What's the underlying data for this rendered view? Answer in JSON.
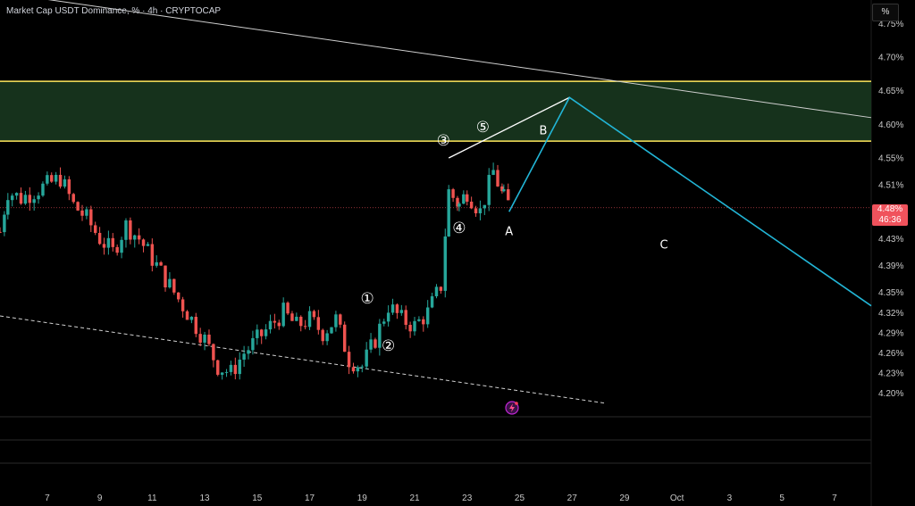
{
  "header": {
    "title": "Market Cap USDT Dominance, % · 4h · CRYPTOCAP",
    "unit_button": "%"
  },
  "price_badge": {
    "price": "4.48%",
    "countdown": "46:36"
  },
  "colors": {
    "up": "#26a69a",
    "down": "#ef5350",
    "zone_border": "#ffe85c",
    "zone_fill": "#16321c",
    "projection": "#22b5d6",
    "support": "#2f5fff",
    "wave_line": "#ffffff",
    "badge": "#f0525c"
  },
  "chart_data": {
    "type": "candlestick",
    "symbol": "USDT.D",
    "timeframe": "4h",
    "y_axis": {
      "unit": "%",
      "range": [
        4.165,
        4.785
      ],
      "ticks": [
        4.75,
        4.7,
        4.65,
        4.6,
        4.55,
        4.51,
        4.48,
        4.43,
        4.39,
        4.35,
        4.32,
        4.29,
        4.26,
        4.23,
        4.2
      ],
      "tick_labels": [
        "4.75%",
        "4.70%",
        "4.65%",
        "4.60%",
        "4.55%",
        "4.51%",
        "4.48%",
        "4.43%",
        "4.39%",
        "4.35%",
        "4.32%",
        "4.29%",
        "4.26%",
        "4.23%",
        "4.20%"
      ]
    },
    "x_axis": {
      "tick_labels": [
        "7",
        "9",
        "11",
        "13",
        "15",
        "17",
        "19",
        "21",
        "23",
        "25",
        "27",
        "29",
        "Oct",
        "3",
        "5",
        "7"
      ],
      "tick_days": [
        7,
        9,
        11,
        13,
        15,
        17,
        19,
        21,
        23,
        25,
        27,
        29,
        31,
        33,
        35,
        37
      ],
      "day_range": [
        5.2,
        38.4
      ]
    },
    "candles_close_path": [
      [
        5.2,
        4.44
      ],
      [
        5.5,
        4.5
      ],
      [
        6.0,
        4.49
      ],
      [
        6.5,
        4.5
      ],
      [
        7.0,
        4.51
      ],
      [
        7.5,
        4.52
      ],
      [
        8.0,
        4.48
      ],
      [
        8.5,
        4.46
      ],
      [
        9.0,
        4.43
      ],
      [
        9.5,
        4.41
      ],
      [
        10.0,
        4.45
      ],
      [
        10.5,
        4.43
      ],
      [
        11.0,
        4.4
      ],
      [
        11.5,
        4.37
      ],
      [
        12.0,
        4.34
      ],
      [
        12.5,
        4.31
      ],
      [
        13.0,
        4.28
      ],
      [
        13.5,
        4.24
      ],
      [
        14.0,
        4.23
      ],
      [
        14.5,
        4.26
      ],
      [
        15.0,
        4.28
      ],
      [
        15.5,
        4.3
      ],
      [
        16.0,
        4.32
      ],
      [
        16.5,
        4.3
      ],
      [
        17.0,
        4.31
      ],
      [
        17.5,
        4.29
      ],
      [
        18.0,
        4.31
      ],
      [
        18.5,
        4.25
      ],
      [
        19.0,
        4.24
      ],
      [
        19.5,
        4.28
      ],
      [
        20.0,
        4.33
      ],
      [
        20.5,
        4.31
      ],
      [
        21.0,
        4.3
      ],
      [
        21.5,
        4.32
      ],
      [
        22.0,
        4.36
      ],
      [
        22.3,
        4.5
      ],
      [
        22.7,
        4.48
      ],
      [
        23.0,
        4.5
      ],
      [
        23.5,
        4.47
      ],
      [
        24.0,
        4.53
      ],
      [
        24.4,
        4.49
      ],
      [
        24.6,
        4.48
      ]
    ],
    "support_zone": {
      "from": 4.575,
      "to": 4.664
    },
    "trendline_upper": {
      "from": [
        0,
        4.825
      ],
      "to": [
        38.4,
        4.61
      ]
    },
    "trendline_lower_dashed": {
      "from": [
        5.2,
        4.315
      ],
      "to": [
        28.3,
        4.185
      ]
    },
    "wave_channel_line": {
      "from": [
        22.3,
        4.55
      ],
      "to": [
        26.9,
        4.64
      ]
    },
    "projection": [
      [
        24.6,
        4.47
      ],
      [
        26.9,
        4.64
      ],
      [
        38.4,
        4.33
      ]
    ],
    "support_line": {
      "from": [
        22.4,
        4.465
      ],
      "to": [
        25.4,
        4.465
      ]
    },
    "wave_labels": [
      {
        "label": "①",
        "day": 19.2,
        "value": 4.34
      },
      {
        "label": "②",
        "day": 20.0,
        "value": 4.27
      },
      {
        "label": "③",
        "day": 22.1,
        "value": 4.575
      },
      {
        "label": "④",
        "day": 22.7,
        "value": 4.445
      },
      {
        "label": "⑤",
        "day": 23.6,
        "value": 4.595
      },
      {
        "label": "A",
        "day": 24.6,
        "value": 4.44
      },
      {
        "label": "B",
        "day": 25.9,
        "value": 4.59
      },
      {
        "label": "C",
        "day": 30.5,
        "value": 4.42
      }
    ]
  }
}
